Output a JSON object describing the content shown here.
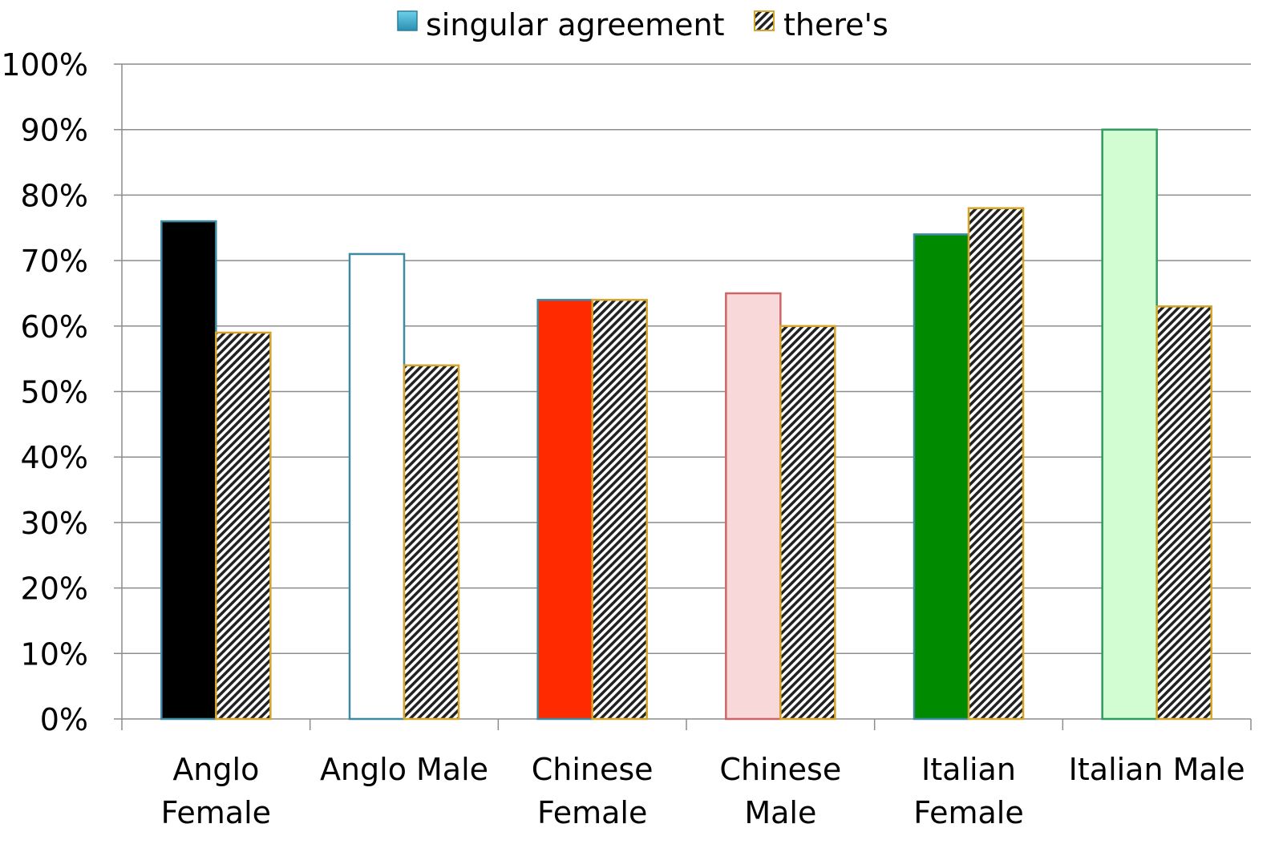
{
  "chart_data": {
    "type": "bar",
    "title": "",
    "xlabel": "",
    "ylabel": "",
    "ylim": [
      0,
      100
    ],
    "y_tick_labels": [
      "0%",
      "10%",
      "20%",
      "30%",
      "40%",
      "50%",
      "60%",
      "70%",
      "80%",
      "90%",
      "100%"
    ],
    "y_tick_values": [
      0,
      10,
      20,
      30,
      40,
      50,
      60,
      70,
      80,
      90,
      100
    ],
    "grid": true,
    "legend_position": "top-center",
    "categories": [
      [
        "Anglo",
        "Female"
      ],
      [
        "Anglo Male"
      ],
      [
        "Chinese",
        "Female"
      ],
      [
        "Chinese",
        "Male"
      ],
      [
        "Italian",
        "Female"
      ],
      [
        "Italian Male"
      ]
    ],
    "series": [
      {
        "name": "singular agreement",
        "values": [
          76,
          71,
          64,
          65,
          74,
          90
        ],
        "legend_color": "#3aa7c6",
        "bar_colors": [
          "#000000",
          "#ffffff",
          "#ff2a00",
          "#f8d8d8",
          "#008a00",
          "#d2fcd2"
        ],
        "outline_colors": [
          "#3f8aa3",
          "#3f8aa3",
          "#3f8aa3",
          "#cc6666",
          "#3f8aa3",
          "#2f9a5c"
        ]
      },
      {
        "name": "there's",
        "values": [
          59,
          54,
          64,
          60,
          78,
          63
        ],
        "pattern": "diagonal-hatch",
        "hatch_colors": [
          "#222222",
          "#ffffff"
        ],
        "outline_color": "#d4a52a"
      }
    ]
  }
}
